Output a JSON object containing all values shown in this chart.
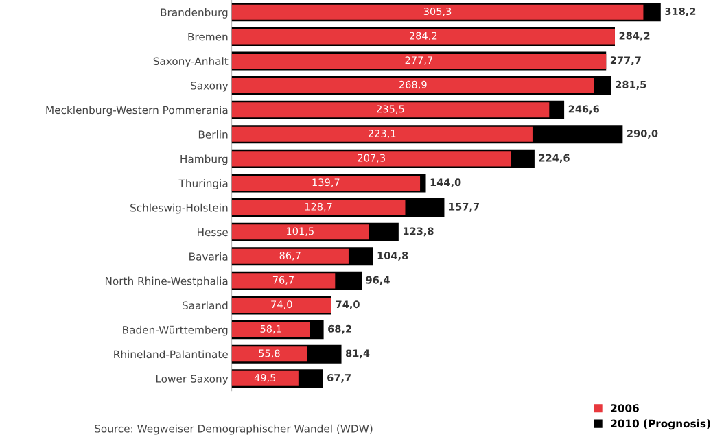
{
  "chart_data": {
    "type": "bar",
    "orientation": "horizontal",
    "categories": [
      "Brandenburg",
      "Bremen",
      "Saxony-Anhalt",
      "Saxony",
      "Mecklenburg-Western Pommerania",
      "Berlin",
      "Hamburg",
      "Thuringia",
      "Schleswig-Holstein",
      "Hesse",
      "Bavaria",
      "North Rhine-Westphalia",
      "Saarland",
      "Baden-Württemberg",
      "Rhineland-Palantinate",
      "Lower Saxony"
    ],
    "series": [
      {
        "name": "2006",
        "color": "#e8383d",
        "values": [
          305.3,
          284.2,
          277.7,
          268.9,
          235.5,
          223.1,
          207.3,
          139.7,
          128.7,
          101.5,
          86.7,
          76.7,
          74.0,
          58.1,
          55.8,
          49.5
        ],
        "value_labels": [
          "305,3",
          "284,2",
          "277,7",
          "268,9",
          "235,5",
          "223,1",
          "207,3",
          "139,7",
          "128,7",
          "101,5",
          "86,7",
          "76,7",
          "74,0",
          "58,1",
          "55,8",
          "49,5"
        ]
      },
      {
        "name": "2010 (Prognosis)",
        "color": "#000000",
        "values": [
          318.2,
          284.2,
          277.7,
          281.5,
          246.6,
          290.0,
          224.6,
          144.0,
          157.7,
          123.8,
          104.8,
          96.4,
          74.0,
          68.2,
          81.4,
          67.7
        ],
        "value_labels": [
          "318,2",
          "284,2",
          "277,7",
          "281,5",
          "246,6",
          "290,0",
          "224,6",
          "144,0",
          "157,7",
          "123,8",
          "104,8",
          "96,4",
          "74,0",
          "68,2",
          "81,4",
          "67,7"
        ]
      }
    ],
    "legend": "bottom right",
    "tick_labels": "y",
    "annotations": [
      "Source: Wegweiser Demographischer Wandel (WDW)"
    ]
  }
}
